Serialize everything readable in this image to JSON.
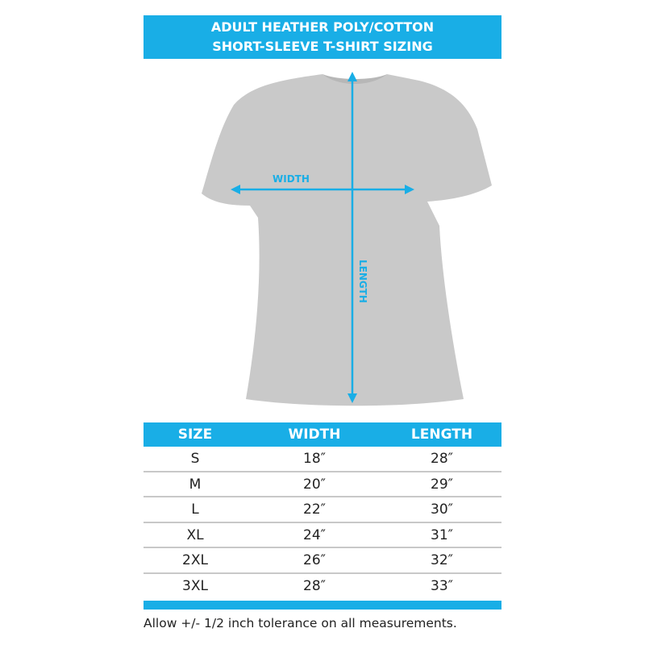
{
  "banner": {
    "line1": "ADULT HEATHER POLY/COTTON",
    "line2": "SHORT-SLEEVE T-SHIRT SIZING"
  },
  "diagram": {
    "width_label": "WIDTH",
    "length_label": "LENGTH",
    "shirt_color": "#c9c9c9",
    "accent": "#19aee6"
  },
  "table": {
    "headers": [
      "SIZE",
      "WIDTH",
      "LENGTH"
    ],
    "rows": [
      [
        "S",
        "18″",
        "28″"
      ],
      [
        "M",
        "20″",
        "29″"
      ],
      [
        "L",
        "22″",
        "30″"
      ],
      [
        "XL",
        "24″",
        "31″"
      ],
      [
        "2XL",
        "26″",
        "32″"
      ],
      [
        "3XL",
        "28″",
        "33″"
      ]
    ]
  },
  "footer": "Allow +/- 1/2 inch tolerance on all measurements."
}
